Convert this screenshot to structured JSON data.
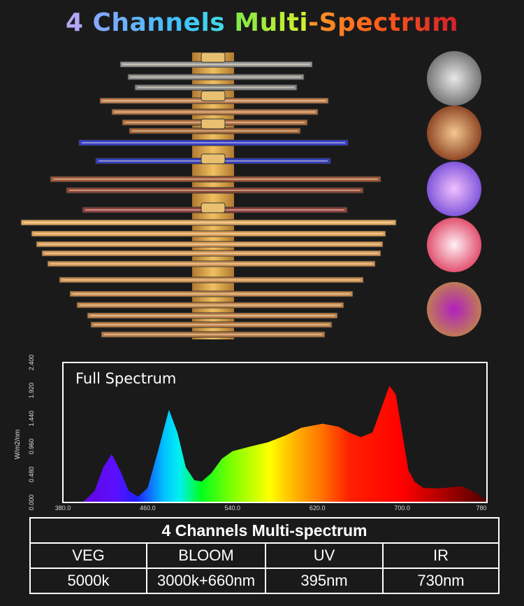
{
  "title": {
    "parts": [
      "4 ",
      "Channels ",
      "Multi",
      "-Spectrum"
    ]
  },
  "circles": [
    {
      "name": "white-led-closeup",
      "colors": [
        "#e8e8e8",
        "#707070"
      ]
    },
    {
      "name": "warm-red-led-closeup",
      "colors": [
        "#f4c890",
        "#8a4020"
      ]
    },
    {
      "name": "uv-led-closeup",
      "colors": [
        "#f0c0ff",
        "#7a50d8"
      ]
    },
    {
      "name": "ir-led-closeup",
      "colors": [
        "#fff0f4",
        "#e04868"
      ]
    },
    {
      "name": "mixed-led-closeup",
      "colors": [
        "#b020c0",
        "#c08050"
      ]
    }
  ],
  "chart_data": {
    "type": "area",
    "title": "Full  Spectrum",
    "xlabel": "",
    "ylabel": "W/m2/nm",
    "xlim": [
      380,
      780
    ],
    "ylim": [
      0,
      2.4
    ],
    "x_ticks": [
      "380.0",
      "460.0",
      "540.0",
      "620.0",
      "700.0",
      "780"
    ],
    "y_ticks": [
      "0.000",
      "0.480",
      "0.960",
      "1.440",
      "1.920",
      "2.400"
    ],
    "grid": false,
    "series": [
      {
        "name": "Full Spectrum",
        "x": [
          395,
          400,
          410,
          418,
          426,
          434,
          442,
          451,
          460,
          470,
          480,
          488,
          496,
          504,
          511,
          520,
          530,
          540,
          557,
          573,
          590,
          605,
          625,
          640,
          650,
          661,
          672,
          680,
          688,
          694,
          700,
          706,
          712,
          720,
          735,
          756,
          768,
          780
        ],
        "y": [
          0,
          0.02,
          0.2,
          0.6,
          0.83,
          0.55,
          0.2,
          0.1,
          0.25,
          0.9,
          1.59,
          1.2,
          0.6,
          0.38,
          0.36,
          0.5,
          0.75,
          0.88,
          0.96,
          1.03,
          1.15,
          1.28,
          1.35,
          1.3,
          1.2,
          1.12,
          1.2,
          1.6,
          2.0,
          1.85,
          1.2,
          0.55,
          0.35,
          0.25,
          0.24,
          0.28,
          0.18,
          0.04
        ]
      }
    ]
  },
  "table": {
    "title": "4 Channels Multi-spectrum",
    "headers": [
      "VEG",
      "BLOOM",
      "UV",
      "IR"
    ],
    "values": [
      "5000k",
      "3000k+660nm",
      "395nm",
      "730nm"
    ]
  }
}
